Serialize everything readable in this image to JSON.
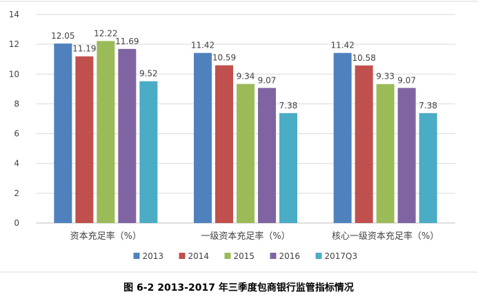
{
  "chart_data": {
    "type": "bar",
    "categories": [
      "资本充足率（%）",
      "一级资本充足率（%）",
      "核心一级资本充足率（%）"
    ],
    "series": [
      {
        "name": "2013",
        "color": "#4f81bd",
        "values": [
          12.05,
          11.42,
          11.42
        ]
      },
      {
        "name": "2014",
        "color": "#c0504d",
        "values": [
          11.19,
          10.59,
          10.58
        ]
      },
      {
        "name": "2015",
        "color": "#9bbb59",
        "values": [
          12.22,
          9.34,
          9.33
        ]
      },
      {
        "name": "2016",
        "color": "#8064a2",
        "values": [
          11.69,
          9.07,
          9.07
        ]
      },
      {
        "name": "2017Q3",
        "color": "#4bacc6",
        "values": [
          9.52,
          7.38,
          7.38
        ]
      }
    ],
    "data_labels": [
      [
        "12.05",
        "11.42",
        "11.42"
      ],
      [
        "11.19",
        "10.59",
        "10.58"
      ],
      [
        "12.22",
        "9.34",
        "9.33"
      ],
      [
        "11.69",
        "9.07",
        "9.07"
      ],
      [
        "9.52",
        "7.38",
        "7.38"
      ]
    ],
    "ylim": [
      0,
      14
    ],
    "yticks": [
      0,
      2,
      4,
      6,
      8,
      10,
      12,
      14
    ],
    "grid": true,
    "legend_position": "bottom",
    "title": "",
    "xlabel": "",
    "ylabel": ""
  },
  "caption": "图 6-2 2013-2017 年三季度包商银行监管指标情况"
}
